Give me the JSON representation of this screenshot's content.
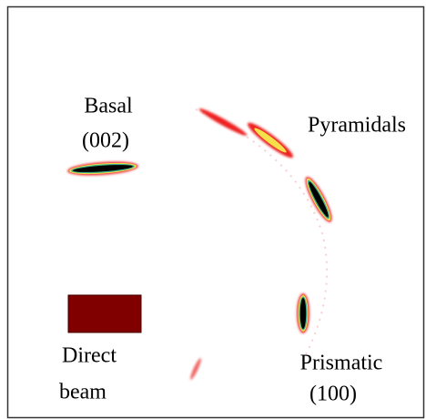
{
  "labels": {
    "basal": [
      "Basal",
      "(002)"
    ],
    "pyramidals": "Pyramidals",
    "direct_beam": [
      "Direct",
      "beam"
    ],
    "prismatic": [
      "Prismatic",
      "(100)"
    ]
  }
}
